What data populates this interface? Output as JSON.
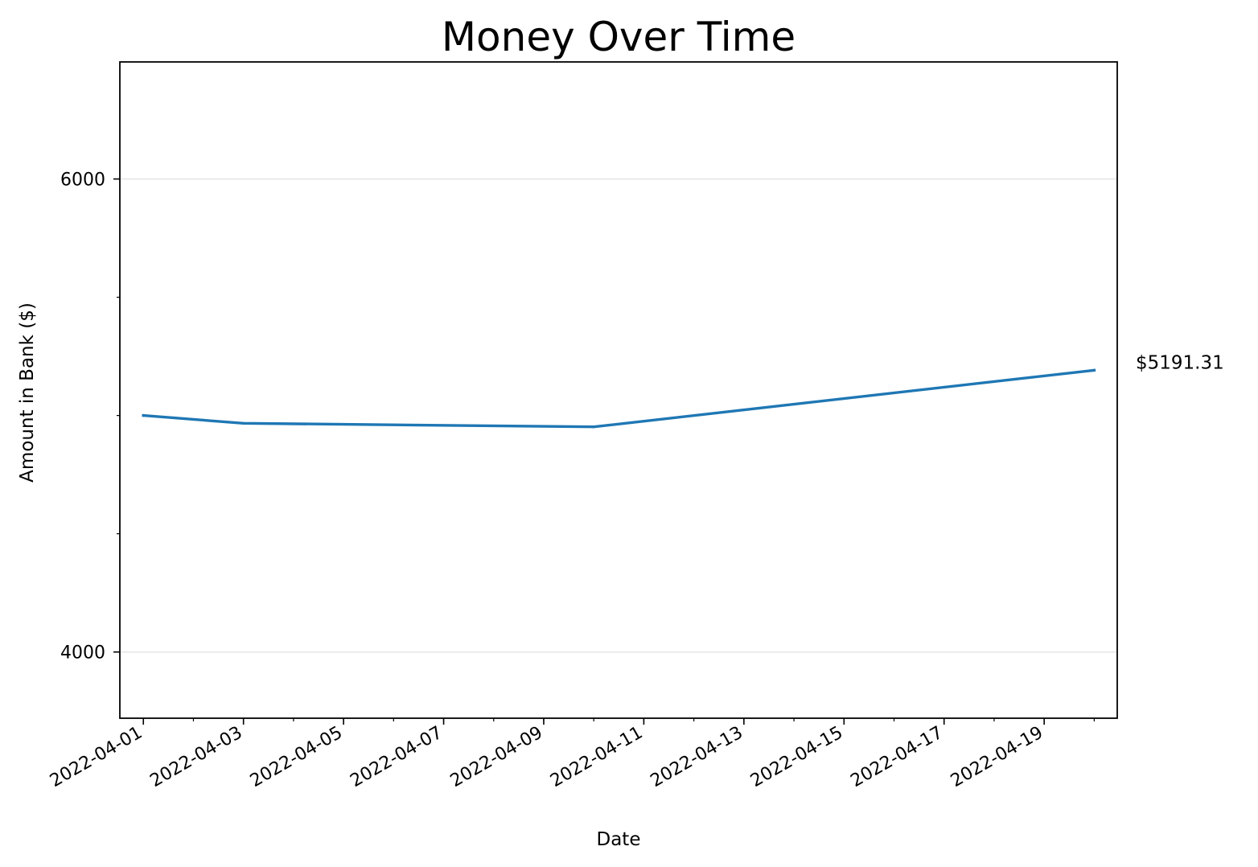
{
  "chart_data": {
    "type": "line",
    "title": "Money Over Time",
    "xlabel": "Date",
    "ylabel": "Amount in Bank ($)",
    "x": [
      "2022-04-01",
      "2022-04-03",
      "2022-04-10",
      "2022-04-20"
    ],
    "series": [
      {
        "values": [
          5000,
          4967,
          4952,
          5191.31
        ]
      }
    ],
    "xlim": [
      "2022-03-31.53",
      "2022-04-20.46"
    ],
    "ylim": [
      3720,
      6495
    ],
    "x_tick_labels": [
      "2022-04-01",
      "2022-04-03",
      "2022-04-05",
      "2022-04-07",
      "2022-04-09",
      "2022-04-11",
      "2022-04-13",
      "2022-04-15",
      "2022-04-17",
      "2022-04-19"
    ],
    "x_minor_ticks": "daily",
    "y_ticks": [
      4000,
      6000
    ],
    "y_minor_ticks": [
      4500,
      5000,
      5500
    ],
    "grid": "y-major",
    "legend": "none",
    "annotations": [
      {
        "text": "$5191.31",
        "x": "2022-04-20",
        "y": 5191.31
      }
    ],
    "colors": {
      "line": "#1f77b4",
      "grid": "#e6e6e6",
      "axes": "#000000"
    }
  }
}
